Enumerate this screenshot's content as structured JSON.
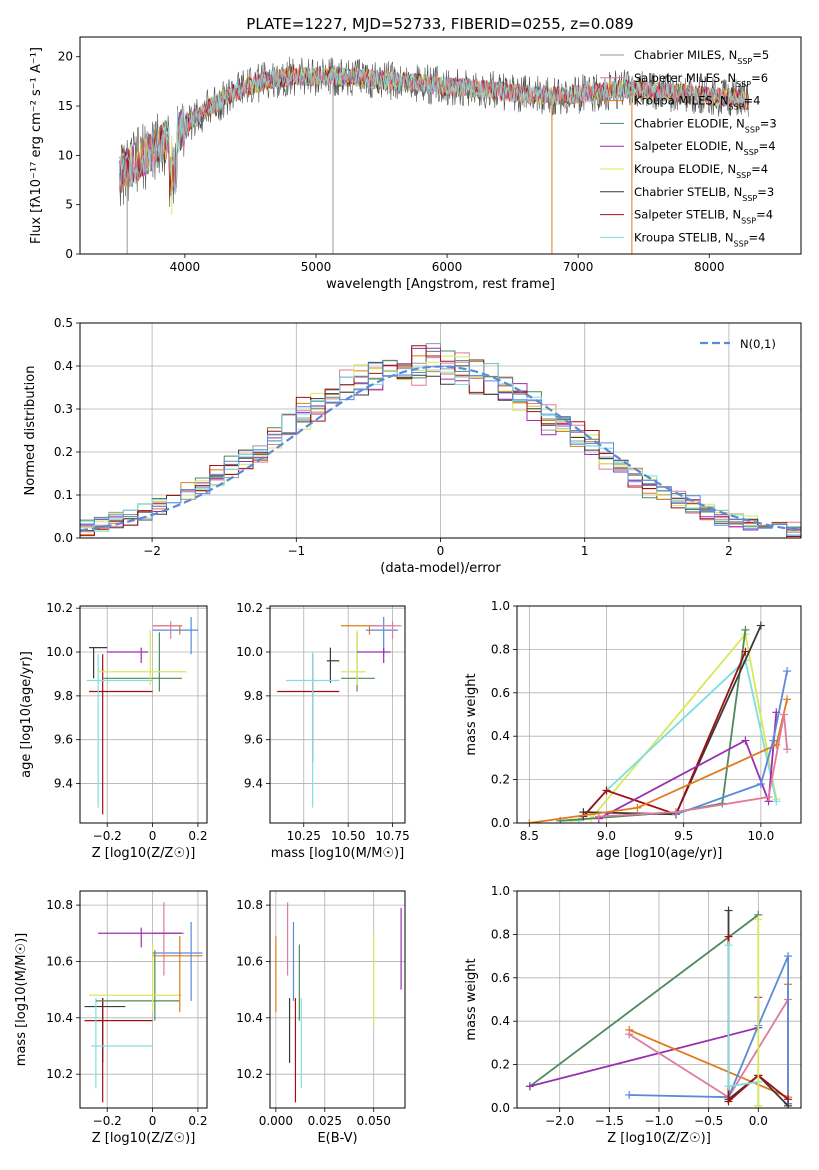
{
  "figure_title": "PLATE=1227, MJD=52733, FIBERID=0255, z=0.089",
  "colors": {
    "model_colors": [
      "#999999",
      "#e07b9a",
      "#e07b1a",
      "#4c8a5e",
      "#9a2fb0",
      "#d8e85a",
      "#3a3a3a",
      "#a01010",
      "#80dede"
    ],
    "blue": "#5a8ad8",
    "green": "#4c8a5e",
    "olive_dark": "#444444",
    "grid": "#b0b0b0"
  },
  "chart_data": [
    {
      "id": "spectrum",
      "type": "line",
      "title": "PLATE=1227, MJD=52733, FIBERID=0255, z=0.089",
      "xlabel": "wavelength [Angstrom, rest frame]",
      "ylabel": "Flux [fλ10⁻¹⁷ erg cm⁻² s⁻¹ A⁻¹]",
      "xlim": [
        3200,
        8700
      ],
      "ylim": [
        0,
        22
      ],
      "xticks": [
        4000,
        5000,
        6000,
        7000,
        8000
      ],
      "yticks": [
        0,
        5,
        10,
        15,
        20
      ],
      "grid": false,
      "legend_position": "right",
      "legend": [
        "Chabrier MILES, N_SSP=5",
        "Salpeter MILES, N_SSP=6",
        "Kroupa MILES, N_SSP=4",
        "Chabrier ELODIE, N_SSP=3",
        "Salpeter ELODIE, N_SSP=4",
        "Kroupa ELODIE, N_SSP=4",
        "Chabrier STELIB, N_SSP=3",
        "Salpeter STELIB, N_SSP=4",
        "Kroupa STELIB, N_SSP=4"
      ],
      "continuum": [
        [
          3500,
          8
        ],
        [
          3600,
          9
        ],
        [
          3700,
          10
        ],
        [
          3800,
          11
        ],
        [
          3900,
          12
        ],
        [
          4000,
          13
        ],
        [
          4100,
          14
        ],
        [
          4200,
          15
        ],
        [
          4400,
          16.5
        ],
        [
          4600,
          17.5
        ],
        [
          4800,
          18
        ],
        [
          5000,
          18
        ],
        [
          5200,
          18
        ],
        [
          5400,
          17.8
        ],
        [
          5600,
          17.5
        ],
        [
          5800,
          17.3
        ],
        [
          6000,
          17
        ],
        [
          6200,
          16.8
        ],
        [
          6400,
          16.5
        ],
        [
          6600,
          16.2
        ],
        [
          6800,
          16
        ],
        [
          7000,
          16.2
        ],
        [
          7200,
          16.5
        ],
        [
          7400,
          16.8
        ],
        [
          7600,
          16.5
        ],
        [
          7800,
          16.3
        ],
        [
          8000,
          16
        ],
        [
          8200,
          15.8
        ],
        [
          8300,
          15.5
        ]
      ],
      "spikes": [
        [
          3560,
          0
        ],
        [
          3900,
          4
        ],
        [
          5130,
          0
        ],
        [
          6800,
          0
        ],
        [
          7410,
          0
        ]
      ]
    },
    {
      "id": "residuals",
      "type": "bar",
      "xlabel": "(data-model)/error",
      "ylabel": "Normed distribution",
      "xlim": [
        -2.5,
        2.5
      ],
      "ylim": [
        0,
        0.5
      ],
      "xticks": [
        -2,
        -1,
        0,
        1,
        2
      ],
      "yticks": [
        0.0,
        0.1,
        0.2,
        0.3,
        0.4,
        0.5
      ],
      "grid": true,
      "legend": [
        "N(0,1)"
      ],
      "legend_position": "top-right"
    },
    {
      "id": "age_vs_Z",
      "type": "scatter",
      "xlabel": "Z [log10(Z/Z☉)]",
      "ylabel": "age [log10(age/yr)]",
      "xlim": [
        -0.32,
        0.24
      ],
      "ylim": [
        9.22,
        10.21
      ],
      "xticks": [
        -0.2,
        0.0,
        0.2
      ],
      "yticks": [
        9.4,
        9.6,
        9.8,
        10.0,
        10.2
      ],
      "grid": true,
      "points": [
        {
          "x": -0.26,
          "y": 10.02,
          "c": "#3a3a3a",
          "xe": [
            -0.28,
            -0.2
          ],
          "ye": [
            9.88,
            10.02
          ]
        },
        {
          "x": -0.22,
          "y": 9.82,
          "c": "#a01010",
          "xe": [
            -0.28,
            0.0
          ],
          "ye": [
            9.26,
            9.99
          ]
        },
        {
          "x": -0.24,
          "y": 9.87,
          "c": "#80dede",
          "xe": [
            -0.29,
            0.0
          ],
          "ye": [
            9.29,
            9.99
          ]
        },
        {
          "x": 0.03,
          "y": 9.88,
          "c": "#4c8a5e",
          "xe": [
            -0.22,
            0.13
          ],
          "ye": [
            9.82,
            10.09
          ]
        },
        {
          "x": -0.01,
          "y": 9.91,
          "c": "#d8e85a",
          "xe": [
            -0.24,
            0.15
          ],
          "ye": [
            9.85,
            10.1
          ]
        },
        {
          "x": 0.12,
          "y": 10.12,
          "c": "#e07b1a",
          "xe": [
            0.0,
            0.13
          ],
          "ye": [
            10.08,
            10.12
          ]
        },
        {
          "x": 0.17,
          "y": 10.1,
          "c": "#5a8ad8",
          "xe": [
            0.0,
            0.2
          ],
          "ye": [
            9.99,
            10.16
          ]
        },
        {
          "x": 0.08,
          "y": 10.12,
          "c": "#e07b9a",
          "xe": [
            0.0,
            0.13
          ],
          "ye": [
            10.06,
            10.14
          ]
        },
        {
          "x": -0.05,
          "y": 10.0,
          "c": "#9a2fb0",
          "xe": [
            -0.2,
            -0.02
          ],
          "ye": [
            9.95,
            10.02
          ]
        }
      ]
    },
    {
      "id": "age_vs_mass",
      "type": "scatter",
      "xlabel": "mass [log10(M/M☉)]",
      "ylabel": "",
      "xlim": [
        10.06,
        10.82
      ],
      "ylim": [
        9.22,
        10.21
      ],
      "xticks": [
        10.25,
        10.5,
        10.75
      ],
      "yticks": [
        9.4,
        9.6,
        9.8,
        10.0,
        10.2
      ],
      "grid": true,
      "points": [
        {
          "x": 10.4,
          "y": 9.96,
          "c": "#3a3a3a",
          "xe": [
            10.38,
            10.45
          ],
          "ye": [
            9.86,
            10.02
          ]
        },
        {
          "x": 10.3,
          "y": 9.82,
          "c": "#a01010",
          "xe": [
            10.1,
            10.45
          ],
          "ye": [
            9.5,
            9.99
          ]
        },
        {
          "x": 10.3,
          "y": 9.87,
          "c": "#80dede",
          "xe": [
            10.15,
            10.45
          ],
          "ye": [
            9.29,
            10.0
          ]
        },
        {
          "x": 10.55,
          "y": 9.88,
          "c": "#4c8a5e",
          "xe": [
            10.46,
            10.65
          ],
          "ye": [
            9.82,
            10.09
          ]
        },
        {
          "x": 10.55,
          "y": 9.91,
          "c": "#d8e85a",
          "xe": [
            10.46,
            10.6
          ],
          "ye": [
            9.85,
            10.1
          ]
        },
        {
          "x": 10.62,
          "y": 10.12,
          "c": "#e07b1a",
          "xe": [
            10.46,
            10.68
          ],
          "ye": [
            10.08,
            10.12
          ]
        },
        {
          "x": 10.7,
          "y": 10.1,
          "c": "#5a8ad8",
          "xe": [
            10.6,
            10.78
          ],
          "ye": [
            9.99,
            10.16
          ]
        },
        {
          "x": 10.75,
          "y": 10.12,
          "c": "#e07b9a",
          "xe": [
            10.62,
            10.8
          ],
          "ye": [
            10.06,
            10.14
          ]
        },
        {
          "x": 10.7,
          "y": 10.0,
          "c": "#9a2fb0",
          "xe": [
            10.55,
            10.74
          ],
          "ye": [
            9.95,
            10.02
          ]
        }
      ]
    },
    {
      "id": "massweight_vs_age",
      "type": "line",
      "xlabel": "age [log10(age/yr)]",
      "ylabel": "mass weight",
      "xlim": [
        8.42,
        10.26
      ],
      "ylim": [
        0.0,
        1.0
      ],
      "xticks": [
        8.5,
        9.0,
        9.5,
        10.0
      ],
      "yticks": [
        0.0,
        0.2,
        0.4,
        0.6,
        0.8,
        1.0
      ],
      "grid": true,
      "series": [
        {
          "c": "#d8e85a",
          "points": [
            [
              8.77,
              0.01
            ],
            [
              8.9,
              0.02
            ],
            [
              9.9,
              0.87
            ],
            [
              10.1,
              0.11
            ]
          ]
        },
        {
          "c": "#80dede",
          "points": [
            [
              8.82,
              0.01
            ],
            [
              9.0,
              0.15
            ],
            [
              9.9,
              0.75
            ],
            [
              10.1,
              0.1
            ]
          ]
        },
        {
          "c": "#4c8a5e",
          "points": [
            [
              8.7,
              0.01
            ],
            [
              9.45,
              0.05
            ],
            [
              9.75,
              0.09
            ],
            [
              9.9,
              0.89
            ]
          ]
        },
        {
          "c": "#3a3a3a",
          "points": [
            [
              8.85,
              0.05
            ],
            [
              9.45,
              0.04
            ],
            [
              10.0,
              0.91
            ]
          ]
        },
        {
          "c": "#a01010",
          "points": [
            [
              8.85,
              0.03
            ],
            [
              9.0,
              0.15
            ],
            [
              9.45,
              0.04
            ],
            [
              9.9,
              0.79
            ]
          ]
        },
        {
          "c": "#9a2fb0",
          "points": [
            [
              8.95,
              0.02
            ],
            [
              9.9,
              0.38
            ],
            [
              10.05,
              0.1
            ],
            [
              10.1,
              0.51
            ]
          ]
        },
        {
          "c": "#e07b1a",
          "points": [
            [
              8.5,
              0.0
            ],
            [
              9.2,
              0.07
            ],
            [
              10.1,
              0.36
            ],
            [
              10.17,
              0.57
            ]
          ]
        },
        {
          "c": "#5a8ad8",
          "points": [
            [
              9.45,
              0.04
            ],
            [
              10.0,
              0.18
            ],
            [
              10.08,
              0.38
            ],
            [
              10.17,
              0.7
            ]
          ]
        },
        {
          "c": "#e07b9a",
          "points": [
            [
              8.95,
              0.03
            ],
            [
              9.45,
              0.05
            ],
            [
              10.05,
              0.12
            ],
            [
              10.15,
              0.5
            ],
            [
              10.17,
              0.34
            ]
          ]
        }
      ]
    },
    {
      "id": "mass_vs_Z",
      "type": "scatter",
      "xlabel": "Z [log10(Z/Z☉)]",
      "ylabel": "mass [log10(M/M☉)]",
      "xlim": [
        -0.32,
        0.24
      ],
      "ylim": [
        10.08,
        10.85
      ],
      "xticks": [
        -0.2,
        0.0,
        0.2
      ],
      "yticks": [
        10.2,
        10.4,
        10.6,
        10.8
      ],
      "grid": true,
      "points": [
        {
          "x": -0.22,
          "y": 10.44,
          "c": "#3a3a3a",
          "xe": [
            -0.3,
            -0.12
          ],
          "ye": [
            10.24,
            10.47
          ]
        },
        {
          "x": -0.22,
          "y": 10.39,
          "c": "#a01010",
          "xe": [
            -0.3,
            0.0
          ],
          "ye": [
            10.1,
            10.47
          ]
        },
        {
          "x": -0.25,
          "y": 10.3,
          "c": "#80dede",
          "xe": [
            -0.27,
            0.0
          ],
          "ye": [
            10.15,
            10.47
          ]
        },
        {
          "x": 0.01,
          "y": 10.46,
          "c": "#4c8a5e",
          "xe": [
            -0.25,
            0.12
          ],
          "ye": [
            10.39,
            10.64
          ]
        },
        {
          "x": 0.0,
          "y": 10.48,
          "c": "#d8e85a",
          "xe": [
            -0.28,
            0.13
          ],
          "ye": [
            10.42,
            10.66
          ]
        },
        {
          "x": 0.12,
          "y": 10.62,
          "c": "#e07b1a",
          "xe": [
            0.0,
            0.22
          ],
          "ye": [
            10.42,
            10.69
          ]
        },
        {
          "x": 0.17,
          "y": 10.63,
          "c": "#5a8ad8",
          "xe": [
            0.0,
            0.22
          ],
          "ye": [
            10.46,
            10.74
          ]
        },
        {
          "x": 0.05,
          "y": 10.7,
          "c": "#e07b9a",
          "xe": [
            0.0,
            0.14
          ],
          "ye": [
            10.55,
            10.81
          ]
        },
        {
          "x": -0.05,
          "y": 10.7,
          "c": "#9a2fb0",
          "xe": [
            -0.24,
            0.13
          ],
          "ye": [
            10.65,
            10.72
          ]
        }
      ]
    },
    {
      "id": "mass_vs_ebv",
      "type": "scatter",
      "xlabel": "E(B-V)",
      "ylabel": "",
      "xlim": [
        -0.003,
        0.066
      ],
      "ylim": [
        10.08,
        10.85
      ],
      "xticks": [
        0.0,
        0.025,
        0.05
      ],
      "yticks": [
        10.2,
        10.4,
        10.6,
        10.8
      ],
      "grid": true,
      "vlines": [
        {
          "x": 0.0,
          "c": "#e07b1a",
          "y": [
            10.42,
            10.69
          ]
        },
        {
          "x": 0.006,
          "c": "#e07b9a",
          "y": [
            10.55,
            10.81
          ]
        },
        {
          "x": 0.007,
          "c": "#3a3a3a",
          "y": [
            10.24,
            10.47
          ]
        },
        {
          "x": 0.009,
          "c": "#5a8ad8",
          "y": [
            10.46,
            10.74
          ]
        },
        {
          "x": 0.01,
          "c": "#a01010",
          "y": [
            10.1,
            10.47
          ]
        },
        {
          "x": 0.012,
          "c": "#4c8a5e",
          "y": [
            10.39,
            10.66
          ]
        },
        {
          "x": 0.013,
          "c": "#80dede",
          "y": [
            10.15,
            10.47
          ]
        },
        {
          "x": 0.05,
          "c": "#d8e85a",
          "y": [
            10.37,
            10.7
          ]
        },
        {
          "x": 0.064,
          "c": "#9a2fb0",
          "y": [
            10.5,
            10.79
          ]
        }
      ]
    },
    {
      "id": "massweight_vs_Z",
      "type": "line",
      "xlabel": "Z [log10(Z/Z☉)]",
      "ylabel": "mass weight",
      "xlim": [
        -2.43,
        0.43
      ],
      "ylim": [
        0.0,
        1.0
      ],
      "xticks": [
        -2.0,
        -1.5,
        -1.0,
        -0.5,
        0.0
      ],
      "yticks": [
        0.0,
        0.2,
        0.4,
        0.6,
        0.8,
        1.0
      ],
      "grid": true,
      "series": [
        {
          "c": "#4c8a5e",
          "points": [
            [
              -2.3,
              0.1
            ],
            [
              0.0,
              0.89
            ]
          ]
        },
        {
          "c": "#9a2fb0",
          "points": [
            [
              -2.3,
              0.1
            ],
            [
              0.0,
              0.37
            ],
            [
              0.0,
              0.51
            ]
          ]
        },
        {
          "c": "#e07b1a",
          "points": [
            [
              -1.3,
              0.36
            ],
            [
              0.3,
              0.05
            ],
            [
              0.3,
              0.57
            ]
          ]
        },
        {
          "c": "#e07b9a",
          "points": [
            [
              -1.3,
              0.34
            ],
            [
              -0.3,
              0.05
            ],
            [
              0.3,
              0.5
            ],
            [
              0.3,
              0.02
            ]
          ]
        },
        {
          "c": "#5a8ad8",
          "points": [
            [
              -1.3,
              0.06
            ],
            [
              -0.3,
              0.05
            ],
            [
              0.0,
              0.38
            ],
            [
              0.3,
              0.7
            ],
            [
              0.3,
              0.02
            ]
          ]
        },
        {
          "c": "#3a3a3a",
          "points": [
            [
              -0.3,
              0.91
            ],
            [
              -0.3,
              0.04
            ],
            [
              0.0,
              0.15
            ],
            [
              0.3,
              0.01
            ]
          ]
        },
        {
          "c": "#a01010",
          "points": [
            [
              -0.3,
              0.79
            ],
            [
              -0.3,
              0.03
            ],
            [
              0.0,
              0.15
            ],
            [
              0.3,
              0.04
            ]
          ]
        },
        {
          "c": "#80dede",
          "points": [
            [
              -0.3,
              0.75
            ],
            [
              -0.3,
              0.1
            ],
            [
              0.0,
              0.12
            ],
            [
              0.0,
              0.01
            ]
          ]
        },
        {
          "c": "#d8e85a",
          "points": [
            [
              0.0,
              0.87
            ],
            [
              0.0,
              0.01
            ]
          ]
        }
      ]
    }
  ]
}
